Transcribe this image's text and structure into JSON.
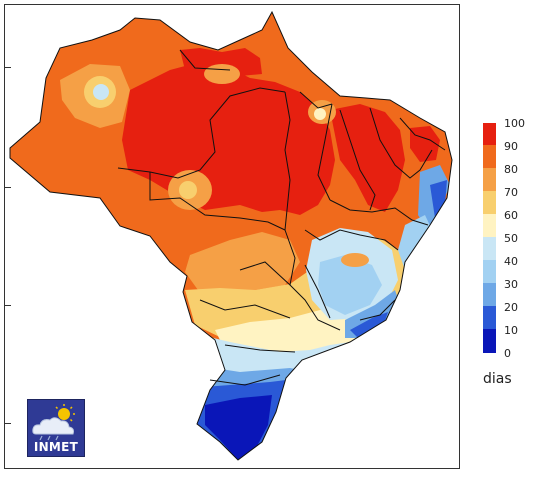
{
  "legend": {
    "ticks": [
      "100",
      "90",
      "80",
      "70",
      "60",
      "50",
      "40",
      "30",
      "20",
      "10",
      "0"
    ],
    "colors": [
      "#e62010",
      "#f06a1c",
      "#f5a046",
      "#f8cf6e",
      "#fff3c2",
      "#c9e6f5",
      "#a2d1f2",
      "#6ea8e6",
      "#2a59d6",
      "#0a16b8"
    ],
    "unit": "dias"
  },
  "logo": {
    "text": "INMET"
  },
  "palette": {
    "deep_red": "#e62010",
    "red_orange": "#f06a1c",
    "orange": "#f5a046",
    "light_orange": "#f8cf6e",
    "cream": "#fff3c2",
    "light_blue": "#c9e6f5",
    "sky_blue": "#a2d1f2",
    "mid_blue": "#6ea8e6",
    "blue": "#2a59d6",
    "dark_blue": "#0a16b8"
  }
}
